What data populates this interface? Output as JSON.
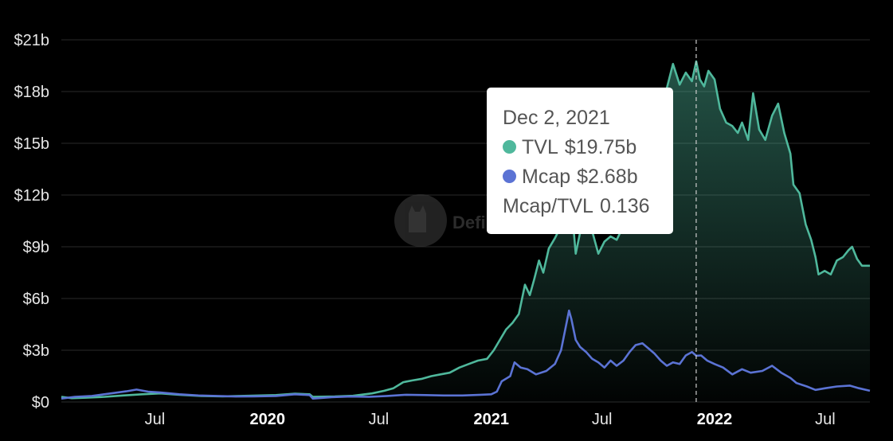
{
  "watermark": {
    "text": "DefiLlama"
  },
  "tooltip": {
    "date": "Dec 2, 2021",
    "rows": [
      {
        "label": "TVL",
        "value": "$19.75b",
        "color": "#4fb89c"
      },
      {
        "label": "Mcap",
        "value": "$2.68b",
        "color": "#5b73d4"
      },
      {
        "label": "Mcap/TVL",
        "value": "0.136"
      }
    ]
  },
  "chart_data": {
    "type": "area",
    "title": "",
    "xlabel": "",
    "ylabel": "",
    "x_range": [
      "2019-01-29",
      "2022-09-12"
    ],
    "ylim": [
      0,
      21
    ],
    "y_unit": "billion USD",
    "y_ticks": [
      {
        "value": 0,
        "label": "$0"
      },
      {
        "value": 3,
        "label": "$3b"
      },
      {
        "value": 6,
        "label": "$6b"
      },
      {
        "value": 9,
        "label": "$9b"
      },
      {
        "value": 12,
        "label": "$12b"
      },
      {
        "value": 15,
        "label": "$15b"
      },
      {
        "value": 18,
        "label": "$18b"
      },
      {
        "value": 21,
        "label": "$21b"
      }
    ],
    "x_ticks": [
      {
        "date": "2019-07-01",
        "label": "Jul",
        "bold": false
      },
      {
        "date": "2020-01-01",
        "label": "2020",
        "bold": true
      },
      {
        "date": "2020-07-01",
        "label": "Jul",
        "bold": false
      },
      {
        "date": "2021-01-01",
        "label": "2021",
        "bold": true
      },
      {
        "date": "2021-07-01",
        "label": "Jul",
        "bold": false
      },
      {
        "date": "2022-01-01",
        "label": "2022",
        "bold": true
      },
      {
        "date": "2022-07-01",
        "label": "Jul",
        "bold": false
      }
    ],
    "crosshair_date": "2021-12-02",
    "grid": true,
    "series": [
      {
        "name": "TVL",
        "color": "#4fb89c",
        "fill": true,
        "points": [
          [
            "2019-01-29",
            0.3
          ],
          [
            "2019-02-15",
            0.22
          ],
          [
            "2019-03-10",
            0.25
          ],
          [
            "2019-04-10",
            0.3
          ],
          [
            "2019-05-10",
            0.38
          ],
          [
            "2019-06-10",
            0.45
          ],
          [
            "2019-07-10",
            0.5
          ],
          [
            "2019-08-10",
            0.42
          ],
          [
            "2019-09-15",
            0.35
          ],
          [
            "2019-10-20",
            0.33
          ],
          [
            "2019-12-01",
            0.36
          ],
          [
            "2020-01-15",
            0.4
          ],
          [
            "2020-02-15",
            0.48
          ],
          [
            "2020-03-10",
            0.45
          ],
          [
            "2020-03-15",
            0.3
          ],
          [
            "2020-04-20",
            0.32
          ],
          [
            "2020-05-20",
            0.36
          ],
          [
            "2020-06-20",
            0.5
          ],
          [
            "2020-07-10",
            0.65
          ],
          [
            "2020-07-25",
            0.8
          ],
          [
            "2020-08-10",
            1.15
          ],
          [
            "2020-08-25",
            1.25
          ],
          [
            "2020-09-10",
            1.35
          ],
          [
            "2020-09-25",
            1.5
          ],
          [
            "2020-10-10",
            1.6
          ],
          [
            "2020-10-25",
            1.7
          ],
          [
            "2020-11-10",
            2.0
          ],
          [
            "2020-11-25",
            2.2
          ],
          [
            "2020-12-10",
            2.4
          ],
          [
            "2020-12-25",
            2.5
          ],
          [
            "2021-01-05",
            3.0
          ],
          [
            "2021-01-15",
            3.6
          ],
          [
            "2021-01-25",
            4.2
          ],
          [
            "2021-02-05",
            4.6
          ],
          [
            "2021-02-15",
            5.1
          ],
          [
            "2021-02-25",
            6.8
          ],
          [
            "2021-03-05",
            6.2
          ],
          [
            "2021-03-12",
            7.1
          ],
          [
            "2021-03-20",
            8.2
          ],
          [
            "2021-03-27",
            7.5
          ],
          [
            "2021-04-05",
            8.9
          ],
          [
            "2021-04-15",
            9.5
          ],
          [
            "2021-04-25",
            10.2
          ],
          [
            "2021-05-01",
            11.0
          ],
          [
            "2021-05-08",
            12.8
          ],
          [
            "2021-05-12",
            11.5
          ],
          [
            "2021-05-19",
            8.6
          ],
          [
            "2021-05-26",
            9.8
          ],
          [
            "2021-06-05",
            10.4
          ],
          [
            "2021-06-15",
            9.9
          ],
          [
            "2021-06-25",
            8.6
          ],
          [
            "2021-07-05",
            9.3
          ],
          [
            "2021-07-15",
            9.6
          ],
          [
            "2021-07-25",
            9.4
          ],
          [
            "2021-08-05",
            10.2
          ],
          [
            "2021-08-15",
            11.6
          ],
          [
            "2021-08-25",
            13.0
          ],
          [
            "2021-09-05",
            14.5
          ],
          [
            "2021-09-15",
            16.0
          ],
          [
            "2021-09-25",
            16.7
          ],
          [
            "2021-10-05",
            17.6
          ],
          [
            "2021-10-15",
            18.2
          ],
          [
            "2021-10-25",
            19.6
          ],
          [
            "2021-11-05",
            18.4
          ],
          [
            "2021-11-15",
            19.1
          ],
          [
            "2021-11-25",
            18.6
          ],
          [
            "2021-12-02",
            19.75
          ],
          [
            "2021-12-08",
            18.7
          ],
          [
            "2021-12-15",
            18.3
          ],
          [
            "2021-12-22",
            19.2
          ],
          [
            "2022-01-01",
            18.7
          ],
          [
            "2022-01-10",
            17.0
          ],
          [
            "2022-01-20",
            16.2
          ],
          [
            "2022-01-30",
            16.0
          ],
          [
            "2022-02-08",
            15.6
          ],
          [
            "2022-02-15",
            16.2
          ],
          [
            "2022-02-25",
            15.2
          ],
          [
            "2022-03-05",
            17.9
          ],
          [
            "2022-03-15",
            15.8
          ],
          [
            "2022-03-25",
            15.2
          ],
          [
            "2022-04-05",
            16.6
          ],
          [
            "2022-04-15",
            17.3
          ],
          [
            "2022-04-25",
            15.6
          ],
          [
            "2022-05-05",
            14.4
          ],
          [
            "2022-05-10",
            12.6
          ],
          [
            "2022-05-20",
            12.1
          ],
          [
            "2022-05-30",
            10.3
          ],
          [
            "2022-06-08",
            9.4
          ],
          [
            "2022-06-15",
            8.4
          ],
          [
            "2022-06-20",
            7.4
          ],
          [
            "2022-06-30",
            7.6
          ],
          [
            "2022-07-10",
            7.4
          ],
          [
            "2022-07-20",
            8.2
          ],
          [
            "2022-07-30",
            8.4
          ],
          [
            "2022-08-08",
            8.8
          ],
          [
            "2022-08-14",
            9.0
          ],
          [
            "2022-08-22",
            8.3
          ],
          [
            "2022-08-30",
            7.9
          ],
          [
            "2022-09-12",
            7.9
          ]
        ]
      },
      {
        "name": "Mcap",
        "color": "#5b73d4",
        "fill": false,
        "points": [
          [
            "2019-01-29",
            0.2
          ],
          [
            "2019-02-20",
            0.3
          ],
          [
            "2019-03-20",
            0.35
          ],
          [
            "2019-04-20",
            0.5
          ],
          [
            "2019-05-15",
            0.62
          ],
          [
            "2019-06-01",
            0.72
          ],
          [
            "2019-06-20",
            0.6
          ],
          [
            "2019-07-10",
            0.55
          ],
          [
            "2019-08-10",
            0.45
          ],
          [
            "2019-09-10",
            0.38
          ],
          [
            "2019-10-10",
            0.35
          ],
          [
            "2019-11-10",
            0.32
          ],
          [
            "2019-12-10",
            0.33
          ],
          [
            "2020-01-15",
            0.35
          ],
          [
            "2020-02-15",
            0.45
          ],
          [
            "2020-03-10",
            0.4
          ],
          [
            "2020-03-15",
            0.2
          ],
          [
            "2020-04-15",
            0.28
          ],
          [
            "2020-05-15",
            0.32
          ],
          [
            "2020-06-15",
            0.3
          ],
          [
            "2020-07-15",
            0.35
          ],
          [
            "2020-08-15",
            0.42
          ],
          [
            "2020-09-15",
            0.4
          ],
          [
            "2020-10-15",
            0.38
          ],
          [
            "2020-11-15",
            0.38
          ],
          [
            "2020-12-15",
            0.42
          ],
          [
            "2021-01-01",
            0.45
          ],
          [
            "2021-01-10",
            0.6
          ],
          [
            "2021-01-18",
            1.2
          ],
          [
            "2021-02-01",
            1.5
          ],
          [
            "2021-02-08",
            2.3
          ],
          [
            "2021-02-18",
            2.0
          ],
          [
            "2021-03-01",
            1.9
          ],
          [
            "2021-03-15",
            1.6
          ],
          [
            "2021-04-01",
            1.8
          ],
          [
            "2021-04-15",
            2.2
          ],
          [
            "2021-04-25",
            3.0
          ],
          [
            "2021-05-03",
            4.4
          ],
          [
            "2021-05-08",
            5.3
          ],
          [
            "2021-05-12",
            4.8
          ],
          [
            "2021-05-19",
            3.6
          ],
          [
            "2021-05-26",
            3.2
          ],
          [
            "2021-06-05",
            2.9
          ],
          [
            "2021-06-15",
            2.5
          ],
          [
            "2021-06-25",
            2.3
          ],
          [
            "2021-07-05",
            2.0
          ],
          [
            "2021-07-15",
            2.4
          ],
          [
            "2021-07-25",
            2.1
          ],
          [
            "2021-08-05",
            2.4
          ],
          [
            "2021-08-15",
            2.9
          ],
          [
            "2021-08-25",
            3.3
          ],
          [
            "2021-09-05",
            3.4
          ],
          [
            "2021-09-15",
            3.1
          ],
          [
            "2021-09-25",
            2.8
          ],
          [
            "2021-10-05",
            2.4
          ],
          [
            "2021-10-15",
            2.1
          ],
          [
            "2021-10-25",
            2.3
          ],
          [
            "2021-11-05",
            2.2
          ],
          [
            "2021-11-15",
            2.7
          ],
          [
            "2021-11-25",
            2.9
          ],
          [
            "2021-12-02",
            2.68
          ],
          [
            "2021-12-10",
            2.7
          ],
          [
            "2021-12-20",
            2.4
          ],
          [
            "2022-01-01",
            2.2
          ],
          [
            "2022-01-15",
            2.0
          ],
          [
            "2022-01-30",
            1.6
          ],
          [
            "2022-02-15",
            1.9
          ],
          [
            "2022-03-01",
            1.7
          ],
          [
            "2022-03-20",
            1.8
          ],
          [
            "2022-04-05",
            2.1
          ],
          [
            "2022-04-20",
            1.7
          ],
          [
            "2022-05-05",
            1.4
          ],
          [
            "2022-05-15",
            1.1
          ],
          [
            "2022-06-01",
            0.9
          ],
          [
            "2022-06-15",
            0.7
          ],
          [
            "2022-07-01",
            0.8
          ],
          [
            "2022-07-20",
            0.9
          ],
          [
            "2022-08-10",
            0.95
          ],
          [
            "2022-08-25",
            0.8
          ],
          [
            "2022-09-12",
            0.65
          ]
        ]
      }
    ]
  }
}
